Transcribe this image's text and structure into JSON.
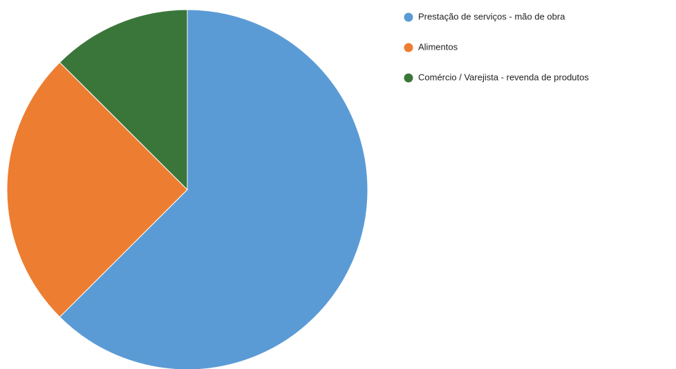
{
  "chart_data": {
    "type": "pie",
    "categories": [
      "Prestação de serviços - mão de obra",
      "Alimentos",
      "Comércio / Varejista  - revenda de produtos"
    ],
    "values": [
      62.5,
      25,
      12.5
    ],
    "colors": [
      "#5b9bd5",
      "#ed7d31",
      "#3a763a"
    ],
    "legend": "right"
  }
}
